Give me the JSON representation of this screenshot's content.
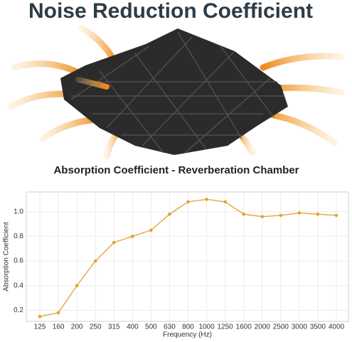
{
  "title": "Noise Reduction Coefficient",
  "subtitle": "Absorption Coefficient - Reverberation Chamber",
  "chart_data": {
    "type": "line",
    "x_label": "Frequency (Hz)",
    "y_label": "Absorption Coefficient",
    "categories": [
      "125",
      "160",
      "200",
      "250",
      "315",
      "400",
      "500",
      "630",
      "800",
      "1000",
      "1250",
      "1600",
      "2000",
      "2500",
      "3000",
      "3500",
      "4000"
    ],
    "values": [
      0.15,
      0.18,
      0.4,
      0.6,
      0.75,
      0.8,
      0.85,
      0.98,
      1.08,
      1.1,
      1.08,
      0.98,
      0.96,
      0.97,
      0.99,
      0.98,
      0.97
    ],
    "color": "#e3a22f",
    "ylim": [
      0.11,
      1.16
    ],
    "yticks": [
      0.2,
      0.4,
      0.6,
      0.8,
      {
        "value": 1,
        "label": "1.0"
      }
    ],
    "grid": true
  }
}
